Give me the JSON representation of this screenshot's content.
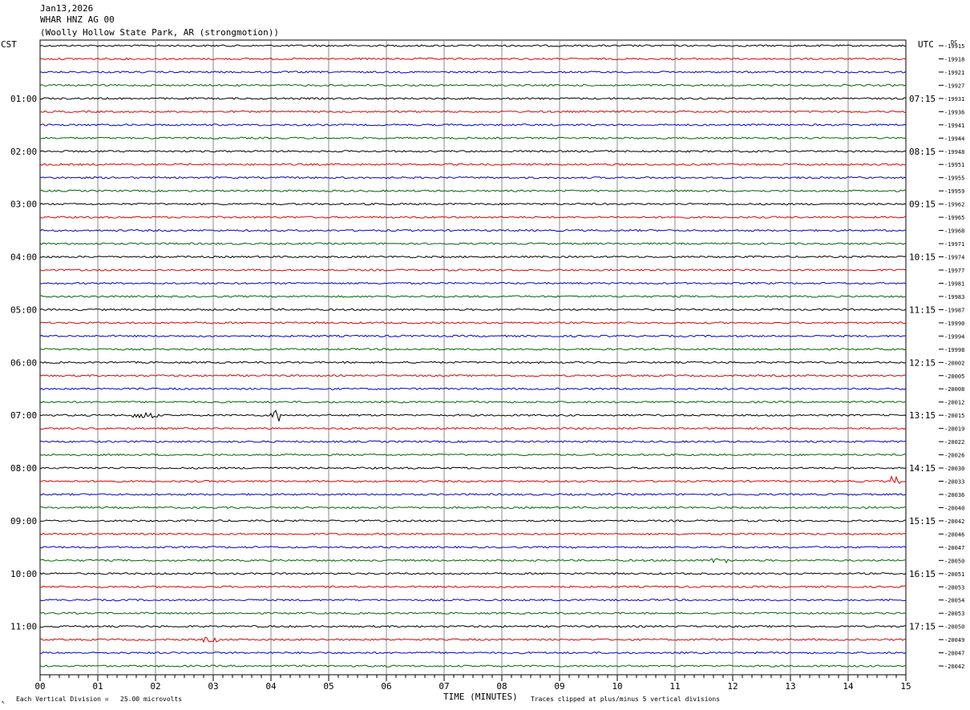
{
  "header": {
    "date": "Jan13,2026",
    "station": "WHAR HNZ AG 00",
    "location": "(Woolly Hollow State Park, AR (strongmotion))"
  },
  "left_axis_label": "CST",
  "right_axis_label": "UTC",
  "dc_label": "DC",
  "corner_mark": "↖",
  "footer": {
    "left": "Each Vertical Division =   25.00 microvolts",
    "right": "Traces clipped at plus/minus 5 vertical divisions"
  },
  "colors": {
    "trace_cycle": [
      "#000000",
      "#e00000",
      "#0000d0",
      "#006600"
    ],
    "grid": "#888888"
  },
  "chart_data": {
    "type": "line",
    "title": "",
    "xlabel": "TIME (MINUTES)",
    "ylabel": "",
    "xlim": [
      0,
      15
    ],
    "x_ticks": [
      "00",
      "01",
      "02",
      "03",
      "04",
      "05",
      "06",
      "07",
      "08",
      "09",
      "10",
      "11",
      "12",
      "13",
      "14",
      "15"
    ],
    "left_time_labels": [
      "01:00",
      "02:00",
      "03:00",
      "04:00",
      "05:00",
      "06:00",
      "07:00",
      "08:00",
      "09:00",
      "10:00",
      "11:00"
    ],
    "right_time_labels": [
      "07:15",
      "08:15",
      "09:15",
      "10:15",
      "11:15",
      "12:15",
      "13:15",
      "14:15",
      "15:15",
      "16:15",
      "17:15"
    ],
    "trace_dc_offsets": [
      "-19915",
      "-19918",
      "-19921",
      "-19927",
      "-19931",
      "-19936",
      "-19941",
      "-19944",
      "-19948",
      "-19951",
      "-19955",
      "-19959",
      "-19962",
      "-19965",
      "-19968",
      "-19971",
      "-19974",
      "-19977",
      "-19981",
      "-19983",
      "-19987",
      "-19990",
      "-19994",
      "-19998",
      "-20002",
      "-20005",
      "-20008",
      "-20012",
      "-20015",
      "-20019",
      "-20022",
      "-20026",
      "-20030",
      "-20033",
      "-20036",
      "-20040",
      "-20042",
      "-20046",
      "-20047",
      "-20050",
      "-20051",
      "-20053",
      "-20054",
      "-20053",
      "-20050",
      "-20049",
      "-20047",
      "-20042"
    ],
    "trace_count": 48,
    "events": [
      {
        "trace": 28,
        "minute_start": 1.6,
        "minute_end": 2.05,
        "amplitude": 4
      },
      {
        "trace": 28,
        "minute_start": 4.0,
        "minute_end": 4.15,
        "amplitude": 8
      },
      {
        "trace": 33,
        "minute_start": 14.75,
        "minute_end": 14.9,
        "amplitude": 6
      },
      {
        "trace": 39,
        "minute_start": 11.6,
        "minute_end": 12.0,
        "amplitude": 3
      },
      {
        "trace": 45,
        "minute_start": 2.8,
        "minute_end": 3.1,
        "amplitude": 3
      }
    ]
  }
}
